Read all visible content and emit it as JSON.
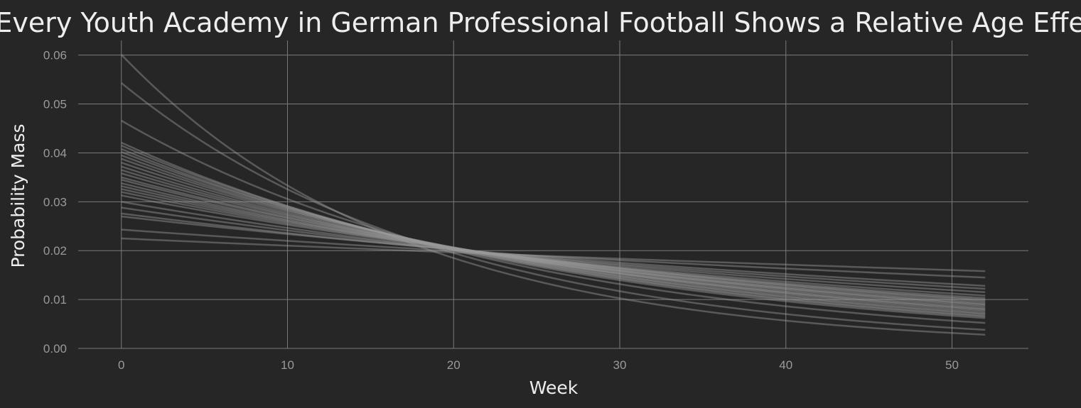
{
  "chart_data": {
    "type": "line",
    "title": "Every Youth Academy in German Professional Football Shows a Relative Age Effect",
    "xlabel": "Week",
    "ylabel": "Probability Mass",
    "xlim": [
      -2.6,
      54.6
    ],
    "ylim": [
      0,
      0.063
    ],
    "xticks": [
      0,
      10,
      20,
      30,
      40,
      50
    ],
    "yticks": [
      0.0,
      0.01,
      0.02,
      0.03,
      0.04,
      0.05,
      0.06
    ],
    "x_range": [
      0,
      52
    ],
    "grid": true,
    "model": "geometric decay p(week) = p0 * r^week",
    "series_start": [
      0.0601,
      0.0543,
      0.0466,
      0.0421,
      0.0415,
      0.0408,
      0.0402,
      0.0395,
      0.0388,
      0.038,
      0.0372,
      0.0365,
      0.0358,
      0.035,
      0.0345,
      0.0338,
      0.0332,
      0.0326,
      0.032,
      0.0313,
      0.03,
      0.0288,
      0.0276,
      0.027,
      0.0243,
      0.0225
    ],
    "series_end": [
      0.0028,
      0.0038,
      0.0052,
      0.0062,
      0.0065,
      0.0067,
      0.007,
      0.0072,
      0.0075,
      0.0078,
      0.008,
      0.0082,
      0.0085,
      0.0088,
      0.009,
      0.0092,
      0.0095,
      0.0098,
      0.01,
      0.0103,
      0.0108,
      0.0115,
      0.0122,
      0.0128,
      0.0145,
      0.0158
    ],
    "colors": {
      "background": "#262626",
      "line": "#9a9a9a",
      "grid": "#7a7a7a",
      "text": "#eeeeee",
      "tick": "#9a9a9a"
    }
  }
}
